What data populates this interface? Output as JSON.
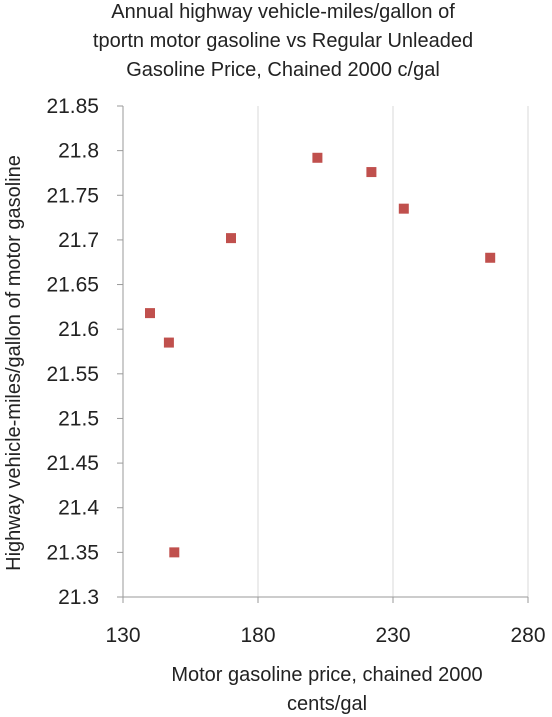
{
  "chart_data": {
    "type": "scatter",
    "title_lines": [
      "Annual highway vehicle-miles/gallon of",
      "tportn motor gasoline vs Regular Unleaded",
      "Gasoline Price, Chained 2000 c/gal"
    ],
    "xlabel_lines": [
      "Motor gasoline price, chained 2000",
      "cents/gal"
    ],
    "ylabel": "Highway vehicle-miles/gallon of motor gasoline",
    "xlim": [
      130,
      280
    ],
    "ylim": [
      21.3,
      21.85
    ],
    "x_ticks": [
      "130",
      "180",
      "230",
      "280"
    ],
    "y_ticks": [
      "21.3",
      "21.35",
      "21.4",
      "21.45",
      "21.5",
      "21.55",
      "21.6",
      "21.65",
      "21.7",
      "21.75",
      "21.8",
      "21.85"
    ],
    "grid": "vertical",
    "legend": "none",
    "marker": "square",
    "marker_color": "#c0504d",
    "points": [
      {
        "x": 140,
        "y": 21.618
      },
      {
        "x": 147,
        "y": 21.585
      },
      {
        "x": 149,
        "y": 21.35
      },
      {
        "x": 170,
        "y": 21.702
      },
      {
        "x": 202,
        "y": 21.792
      },
      {
        "x": 222,
        "y": 21.776
      },
      {
        "x": 234,
        "y": 21.735
      },
      {
        "x": 266,
        "y": 21.68
      }
    ]
  }
}
